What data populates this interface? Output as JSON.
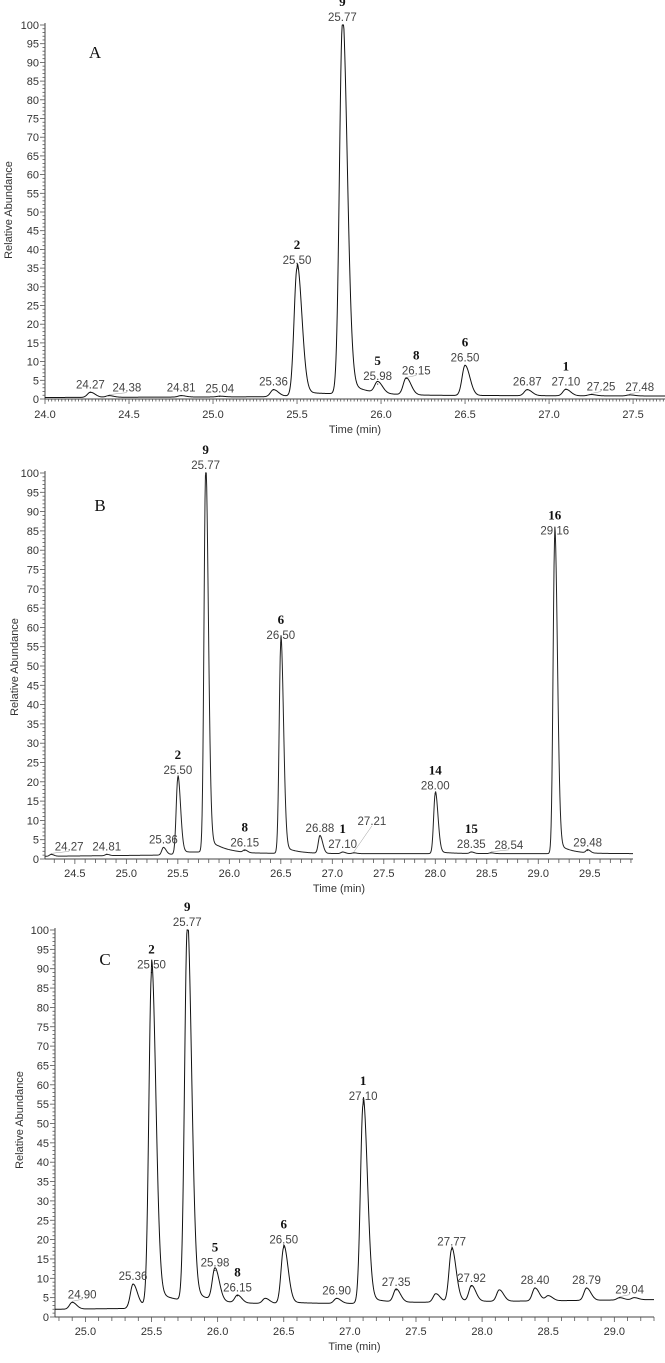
{
  "chart_data": [
    {
      "panel": "A",
      "type": "line",
      "xlabel": "Time (min)",
      "ylabel": "Relative Abundance",
      "xlim": [
        24.0,
        27.69
      ],
      "ylim": [
        0,
        100
      ],
      "xticks": [
        "24.0",
        "24.5",
        "25.0",
        "25.5",
        "26.0",
        "26.5",
        "27.0",
        "27.5"
      ],
      "yticks": [
        "0",
        "5",
        "10",
        "15",
        "20",
        "25",
        "30",
        "35",
        "40",
        "45",
        "50",
        "55",
        "60",
        "65",
        "70",
        "75",
        "80",
        "85",
        "90",
        "95",
        "100"
      ],
      "line_color": "#111111",
      "baseline": [
        [
          24.0,
          0.4
        ],
        [
          25.3,
          0.6
        ],
        [
          25.7,
          1.2
        ],
        [
          26.0,
          1.0
        ],
        [
          27.69,
          0.8
        ]
      ],
      "peaks": [
        {
          "rt_label": "24.27",
          "height": 1.8,
          "compound": ""
        },
        {
          "rt_label": "24.38",
          "height": 0.9,
          "compound": ""
        },
        {
          "rt_label": "24.81",
          "height": 0.9,
          "compound": ""
        },
        {
          "rt_label": "25.04",
          "height": 0.7,
          "compound": ""
        },
        {
          "rt_label": "25.36",
          "height": 2.5,
          "compound": ""
        },
        {
          "rt_label": "25.50",
          "height": 35,
          "compound": "2"
        },
        {
          "rt_label": "25.77",
          "height": 100,
          "compound": "9"
        },
        {
          "rt_label": "25.98",
          "height": 4,
          "compound": "5"
        },
        {
          "rt_label": "26.15",
          "height": 5.5,
          "compound": "8"
        },
        {
          "rt_label": "26.50",
          "height": 9,
          "compound": "6"
        },
        {
          "rt_label": "26.87",
          "height": 2.5,
          "compound": ""
        },
        {
          "rt_label": "27.10",
          "height": 2.6,
          "compound": "1"
        },
        {
          "rt_label": "27.25",
          "height": 1.2,
          "compound": ""
        },
        {
          "rt_label": "27.48",
          "height": 1.1,
          "compound": ""
        }
      ]
    },
    {
      "panel": "B",
      "type": "line",
      "xlabel": "Time (min)",
      "ylabel": "Relative Abundance",
      "xlim": [
        24.21,
        29.92
      ],
      "ylim": [
        0,
        100
      ],
      "xticks": [
        "24.5",
        "25.0",
        "25.5",
        "26.0",
        "26.5",
        "27.0",
        "27.5",
        "28.0",
        "28.5",
        "29.0",
        "29.5"
      ],
      "yticks": [
        "0",
        "5",
        "10",
        "15",
        "20",
        "25",
        "30",
        "35",
        "40",
        "45",
        "50",
        "55",
        "60",
        "65",
        "70",
        "75",
        "80",
        "85",
        "90",
        "95",
        "100"
      ],
      "line_color": "#222222",
      "baseline": [
        [
          24.21,
          0.7
        ],
        [
          25.3,
          1.0
        ],
        [
          25.9,
          2.0
        ],
        [
          26.2,
          1.5
        ],
        [
          27.0,
          1.4
        ],
        [
          29.92,
          1.4
        ]
      ],
      "peaks": [
        {
          "rt_label": "24.27",
          "height": 1.2,
          "compound": ""
        },
        {
          "rt_label": "24.81",
          "height": 1.2,
          "compound": ""
        },
        {
          "rt_label": "25.36",
          "height": 3,
          "compound": ""
        },
        {
          "rt_label": "25.50",
          "height": 21,
          "compound": "2"
        },
        {
          "rt_label": "25.77",
          "height": 100,
          "compound": "9"
        },
        {
          "rt_label": "26.15",
          "height": 2.2,
          "compound": "8"
        },
        {
          "rt_label": "26.50",
          "height": 56,
          "compound": "6"
        },
        {
          "rt_label": "26.88",
          "height": 6,
          "compound": ""
        },
        {
          "rt_label": "27.10",
          "height": 1.8,
          "compound": "1"
        },
        {
          "rt_label": "27.21",
          "height": 1.6,
          "compound": ""
        },
        {
          "rt_label": "28.00",
          "height": 17,
          "compound": "14"
        },
        {
          "rt_label": "28.35",
          "height": 1.8,
          "compound": "15"
        },
        {
          "rt_label": "28.54",
          "height": 1.6,
          "compound": ""
        },
        {
          "rt_label": "29.16",
          "height": 83,
          "compound": "16"
        },
        {
          "rt_label": "29.48",
          "height": 2.2,
          "compound": ""
        }
      ]
    },
    {
      "panel": "C",
      "type": "line",
      "xlabel": "Time (min)",
      "ylabel": "Relative Abundance",
      "xlim": [
        24.77,
        29.3
      ],
      "ylim": [
        0,
        100
      ],
      "xticks": [
        "25.0",
        "25.5",
        "26.0",
        "26.5",
        "27.0",
        "27.5",
        "28.0",
        "28.5",
        "29.0"
      ],
      "yticks": [
        "0",
        "5",
        "10",
        "15",
        "20",
        "25",
        "30",
        "35",
        "40",
        "45",
        "50",
        "55",
        "60",
        "65",
        "70",
        "75",
        "80",
        "85",
        "90",
        "95",
        "100"
      ],
      "line_color": "#111111",
      "baseline": [
        [
          24.77,
          2.0
        ],
        [
          25.3,
          2.2
        ],
        [
          25.6,
          4.0
        ],
        [
          26.2,
          3.5
        ],
        [
          27.0,
          3.5
        ],
        [
          28.0,
          4.0
        ],
        [
          29.3,
          4.5
        ]
      ],
      "peaks": [
        {
          "rt_label": "24.90",
          "height": 3.8,
          "compound": ""
        },
        {
          "rt_label": "25.36",
          "height": 8.5,
          "compound": ""
        },
        {
          "rt_label": "25.50",
          "height": 89,
          "compound": "2"
        },
        {
          "rt_label": "25.77",
          "height": 100,
          "compound": "9"
        },
        {
          "rt_label": "25.98",
          "height": 12,
          "compound": "5"
        },
        {
          "rt_label": "26.15",
          "height": 5.5,
          "compound": "8"
        },
        {
          "rt_label": "26.50",
          "height": 18,
          "compound": "6"
        },
        {
          "rt_label": "26.90",
          "height": 4.8,
          "compound": ""
        },
        {
          "rt_label": "27.10",
          "height": 55,
          "compound": "1"
        },
        {
          "rt_label": "27.35",
          "height": 7,
          "compound": ""
        },
        {
          "rt_label": "27.77",
          "height": 17.5,
          "compound": ""
        },
        {
          "rt_label": "27.92",
          "height": 8,
          "compound": ""
        },
        {
          "rt_label": "28.40",
          "height": 7.5,
          "compound": ""
        },
        {
          "rt_label": "28.79",
          "height": 7.5,
          "compound": ""
        },
        {
          "rt_label": "29.04",
          "height": 5,
          "compound": ""
        }
      ],
      "unlabeled_peaks": [
        [
          26.36,
          4.8
        ],
        [
          27.65,
          6
        ],
        [
          28.13,
          7
        ],
        [
          28.5,
          5.5
        ],
        [
          29.15,
          5
        ]
      ]
    }
  ]
}
